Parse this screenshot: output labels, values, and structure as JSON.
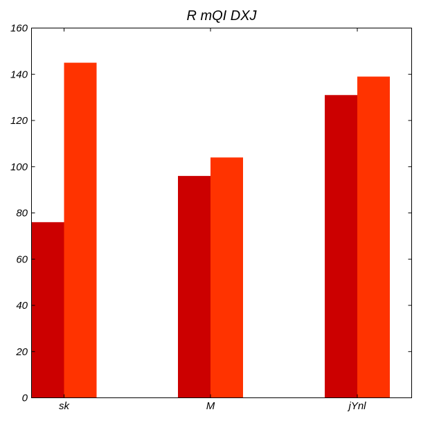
{
  "chart_data": {
    "type": "bar",
    "title": "R mQI DXJ",
    "xlabel": "",
    "ylabel": "",
    "categories": [
      "sk",
      "M",
      "jYnl"
    ],
    "series": [
      {
        "values": [
          76,
          96,
          131
        ],
        "color": "#cc0000"
      },
      {
        "values": [
          145,
          104,
          139
        ],
        "color": "#ff3300"
      }
    ],
    "ylim": [
      0,
      160
    ],
    "yticks": [
      0,
      20,
      40,
      60,
      80,
      100,
      120,
      140,
      160
    ],
    "grid": false,
    "legend": "none"
  }
}
